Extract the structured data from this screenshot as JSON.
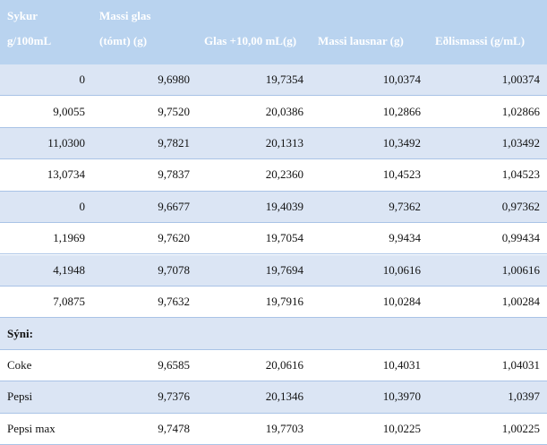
{
  "table": {
    "header": [
      [
        "Sykur",
        "g/100mL"
      ],
      [
        "Massi glas",
        "(tómt) (g)"
      ],
      [
        "Glas +10,00 mL(g)"
      ],
      [
        "Massi lausnar (g)"
      ],
      [
        "Eðlismassi (g/mL)"
      ]
    ],
    "rows": [
      [
        "0",
        "9,6980",
        "19,7354",
        "10,0374",
        "1,00374"
      ],
      [
        "9,0055",
        "9,7520",
        "20,0386",
        "10,2866",
        "1,02866"
      ],
      [
        "11,0300",
        "9,7821",
        "20,1313",
        "10,3492",
        "1,03492"
      ],
      [
        "13,0734",
        "9,7837",
        "20,2360",
        "10,4523",
        "1,04523"
      ],
      [
        "0",
        "9,6677",
        "19,4039",
        "9,7362",
        "0,97362"
      ],
      [
        "1,1969",
        "9,7620",
        "19,7054",
        "9,9434",
        "0,99434"
      ],
      [
        "4,1948",
        "9,7078",
        "19,7694",
        "10,0616",
        "1,00616"
      ],
      [
        "7,0875",
        "9,7632",
        "19,7916",
        "10,0284",
        "1,00284"
      ]
    ],
    "section": "Sýni:",
    "samples": [
      [
        "Coke",
        "9,6585",
        "20,0616",
        "10,4031",
        "1,04031"
      ],
      [
        "Pepsi",
        "9,7376",
        "20,1346",
        "10,3970",
        "1,0397"
      ],
      [
        "Pepsi max",
        "9,7478",
        "19,7703",
        "10,0225",
        "1,00225"
      ]
    ]
  }
}
